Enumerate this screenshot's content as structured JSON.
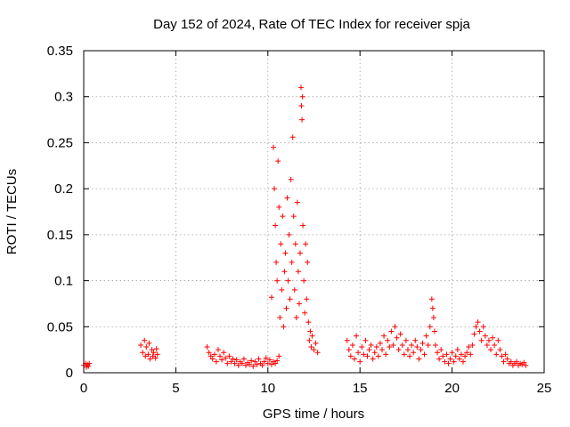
{
  "chart_data": {
    "type": "scatter",
    "title": "Day 152 of 2024, Rate Of TEC Index for receiver spja",
    "xlabel": "GPS time / hours",
    "ylabel": "ROTI / TECUs",
    "xlim": [
      0,
      25
    ],
    "ylim": [
      0,
      0.35
    ],
    "xticks": [
      0,
      5,
      10,
      15,
      20,
      25
    ],
    "xtick_labels": [
      "0",
      "5",
      "10",
      "15",
      "20",
      "25"
    ],
    "yticks": [
      0,
      0.05,
      0.1,
      0.15,
      0.2,
      0.25,
      0.3,
      0.35
    ],
    "ytick_labels": [
      "0",
      "0.05",
      "0.1",
      "0.15",
      "0.2",
      "0.25",
      "0.3",
      "0.35"
    ],
    "grid": true,
    "marker": "plus",
    "color": "#ff0000",
    "series": [
      {
        "name": "ROTI",
        "points": [
          [
            0.0,
            0.008
          ],
          [
            0.1,
            0.01
          ],
          [
            0.15,
            0.006
          ],
          [
            0.2,
            0.009
          ],
          [
            0.25,
            0.007
          ],
          [
            0.3,
            0.01
          ],
          [
            3.1,
            0.03
          ],
          [
            3.2,
            0.022
          ],
          [
            3.3,
            0.035
          ],
          [
            3.35,
            0.018
          ],
          [
            3.4,
            0.028
          ],
          [
            3.5,
            0.02
          ],
          [
            3.55,
            0.032
          ],
          [
            3.6,
            0.015
          ],
          [
            3.7,
            0.025
          ],
          [
            3.75,
            0.018
          ],
          [
            3.8,
            0.022
          ],
          [
            3.9,
            0.016
          ],
          [
            3.95,
            0.026
          ],
          [
            4.0,
            0.02
          ],
          [
            6.7,
            0.028
          ],
          [
            6.8,
            0.022
          ],
          [
            6.9,
            0.018
          ],
          [
            7.0,
            0.015
          ],
          [
            7.1,
            0.02
          ],
          [
            7.2,
            0.012
          ],
          [
            7.3,
            0.025
          ],
          [
            7.4,
            0.018
          ],
          [
            7.5,
            0.014
          ],
          [
            7.6,
            0.022
          ],
          [
            7.7,
            0.016
          ],
          [
            7.8,
            0.01
          ],
          [
            7.9,
            0.018
          ],
          [
            8.0,
            0.012
          ],
          [
            8.1,
            0.015
          ],
          [
            8.2,
            0.01
          ],
          [
            8.3,
            0.014
          ],
          [
            8.4,
            0.008
          ],
          [
            8.5,
            0.012
          ],
          [
            8.6,
            0.01
          ],
          [
            8.7,
            0.015
          ],
          [
            8.8,
            0.008
          ],
          [
            8.9,
            0.011
          ],
          [
            9.0,
            0.009
          ],
          [
            9.1,
            0.013
          ],
          [
            9.2,
            0.007
          ],
          [
            9.3,
            0.012
          ],
          [
            9.4,
            0.009
          ],
          [
            9.5,
            0.015
          ],
          [
            9.6,
            0.01
          ],
          [
            9.7,
            0.008
          ],
          [
            9.8,
            0.012
          ],
          [
            9.9,
            0.016
          ],
          [
            10.0,
            0.01
          ],
          [
            10.1,
            0.014
          ],
          [
            10.2,
            0.009
          ],
          [
            10.3,
            0.012
          ],
          [
            10.4,
            0.01
          ],
          [
            10.5,
            0.013
          ],
          [
            10.6,
            0.018
          ],
          [
            10.2,
            0.082
          ],
          [
            10.3,
            0.245
          ],
          [
            10.35,
            0.2
          ],
          [
            10.4,
            0.16
          ],
          [
            10.45,
            0.12
          ],
          [
            10.5,
            0.1
          ],
          [
            10.55,
            0.23
          ],
          [
            10.6,
            0.18
          ],
          [
            10.65,
            0.06
          ],
          [
            10.7,
            0.14
          ],
          [
            10.75,
            0.09
          ],
          [
            10.8,
            0.17
          ],
          [
            10.85,
            0.05
          ],
          [
            10.9,
            0.11
          ],
          [
            10.95,
            0.13
          ],
          [
            11.0,
            0.07
          ],
          [
            11.05,
            0.19
          ],
          [
            11.1,
            0.1
          ],
          [
            11.15,
            0.15
          ],
          [
            11.2,
            0.08
          ],
          [
            11.25,
            0.21
          ],
          [
            11.3,
            0.12
          ],
          [
            11.35,
            0.256
          ],
          [
            11.4,
            0.17
          ],
          [
            11.45,
            0.09
          ],
          [
            11.5,
            0.14
          ],
          [
            11.55,
            0.06
          ],
          [
            11.6,
            0.185
          ],
          [
            11.65,
            0.11
          ],
          [
            11.7,
            0.075
          ],
          [
            11.75,
            0.13
          ],
          [
            11.8,
            0.31
          ],
          [
            11.82,
            0.29
          ],
          [
            11.85,
            0.275
          ],
          [
            11.88,
            0.3
          ],
          [
            11.9,
            0.16
          ],
          [
            11.95,
            0.1
          ],
          [
            12.0,
            0.065
          ],
          [
            12.05,
            0.14
          ],
          [
            12.1,
            0.08
          ],
          [
            12.15,
            0.12
          ],
          [
            12.2,
            0.055
          ],
          [
            12.25,
            0.035
          ],
          [
            12.3,
            0.045
          ],
          [
            12.35,
            0.028
          ],
          [
            12.4,
            0.04
          ],
          [
            12.5,
            0.025
          ],
          [
            12.6,
            0.032
          ],
          [
            12.7,
            0.022
          ],
          [
            14.3,
            0.035
          ],
          [
            14.4,
            0.025
          ],
          [
            14.5,
            0.018
          ],
          [
            14.6,
            0.03
          ],
          [
            14.7,
            0.015
          ],
          [
            14.8,
            0.04
          ],
          [
            14.9,
            0.022
          ],
          [
            15.0,
            0.012
          ],
          [
            15.1,
            0.028
          ],
          [
            15.2,
            0.02
          ],
          [
            15.3,
            0.035
          ],
          [
            15.4,
            0.018
          ],
          [
            15.5,
            0.025
          ],
          [
            15.6,
            0.03
          ],
          [
            15.7,
            0.015
          ],
          [
            15.8,
            0.022
          ],
          [
            15.9,
            0.028
          ],
          [
            16.0,
            0.018
          ],
          [
            16.1,
            0.032
          ],
          [
            16.2,
            0.025
          ],
          [
            16.3,
            0.04
          ],
          [
            16.4,
            0.02
          ],
          [
            16.5,
            0.035
          ],
          [
            16.6,
            0.028
          ],
          [
            16.7,
            0.045
          ],
          [
            16.8,
            0.03
          ],
          [
            16.9,
            0.05
          ],
          [
            17.0,
            0.038
          ],
          [
            17.1,
            0.025
          ],
          [
            17.2,
            0.042
          ],
          [
            17.3,
            0.03
          ],
          [
            17.4,
            0.02
          ],
          [
            17.5,
            0.035
          ],
          [
            17.6,
            0.025
          ],
          [
            17.7,
            0.018
          ],
          [
            17.8,
            0.03
          ],
          [
            17.9,
            0.022
          ],
          [
            18.0,
            0.035
          ],
          [
            18.1,
            0.028
          ],
          [
            18.2,
            0.015
          ],
          [
            18.3,
            0.025
          ],
          [
            18.4,
            0.032
          ],
          [
            18.5,
            0.02
          ],
          [
            18.6,
            0.04
          ],
          [
            18.7,
            0.03
          ],
          [
            18.8,
            0.05
          ],
          [
            18.9,
            0.08
          ],
          [
            18.95,
            0.07
          ],
          [
            19.0,
            0.06
          ],
          [
            19.05,
            0.045
          ],
          [
            19.1,
            0.03
          ],
          [
            19.2,
            0.022
          ],
          [
            19.3,
            0.015
          ],
          [
            19.4,
            0.025
          ],
          [
            19.5,
            0.018
          ],
          [
            19.6,
            0.012
          ],
          [
            19.7,
            0.02
          ],
          [
            19.8,
            0.01
          ],
          [
            19.9,
            0.015
          ],
          [
            20.0,
            0.022
          ],
          [
            20.1,
            0.012
          ],
          [
            20.2,
            0.018
          ],
          [
            20.3,
            0.025
          ],
          [
            20.4,
            0.015
          ],
          [
            20.5,
            0.02
          ],
          [
            20.6,
            0.012
          ],
          [
            20.7,
            0.018
          ],
          [
            20.8,
            0.022
          ],
          [
            20.9,
            0.028
          ],
          [
            21.0,
            0.02
          ],
          [
            21.1,
            0.03
          ],
          [
            21.2,
            0.042
          ],
          [
            21.3,
            0.05
          ],
          [
            21.4,
            0.055
          ],
          [
            21.5,
            0.045
          ],
          [
            21.6,
            0.035
          ],
          [
            21.7,
            0.05
          ],
          [
            21.8,
            0.04
          ],
          [
            21.9,
            0.03
          ],
          [
            22.0,
            0.035
          ],
          [
            22.1,
            0.025
          ],
          [
            22.2,
            0.038
          ],
          [
            22.3,
            0.03
          ],
          [
            22.4,
            0.02
          ],
          [
            22.5,
            0.035
          ],
          [
            22.6,
            0.025
          ],
          [
            22.7,
            0.018
          ],
          [
            22.8,
            0.012
          ],
          [
            22.9,
            0.02
          ],
          [
            23.0,
            0.015
          ],
          [
            23.1,
            0.01
          ],
          [
            23.2,
            0.012
          ],
          [
            23.3,
            0.008
          ],
          [
            23.4,
            0.01
          ],
          [
            23.5,
            0.012
          ],
          [
            23.6,
            0.008
          ],
          [
            23.7,
            0.01
          ],
          [
            23.8,
            0.009
          ],
          [
            23.9,
            0.011
          ],
          [
            24.0,
            0.008
          ]
        ]
      }
    ]
  }
}
